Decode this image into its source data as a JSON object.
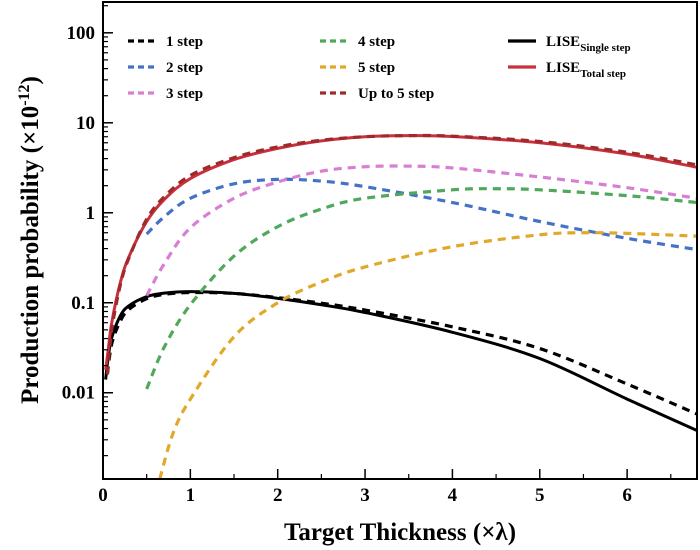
{
  "chart_data": {
    "type": "line",
    "xlabel": "Target Thickness (×λ)",
    "ylabel": "Production probability (×10",
    "ylabel_exponent": "-12",
    "ylabel_close": ")",
    "xlim": [
      0,
      6.8
    ],
    "ylim": [
      0.0011,
      220
    ],
    "yscale": "log",
    "grid": false,
    "legend_position": "top",
    "xticks": [
      {
        "value": 0,
        "label": "0"
      },
      {
        "value": 1,
        "label": "1"
      },
      {
        "value": 2,
        "label": "2"
      },
      {
        "value": 3,
        "label": "3"
      },
      {
        "value": 4,
        "label": "4"
      },
      {
        "value": 5,
        "label": "5"
      },
      {
        "value": 6,
        "label": "6"
      }
    ],
    "yticks": [
      {
        "value": 0.01,
        "label": "0.01"
      },
      {
        "value": 0.1,
        "label": "0.1"
      },
      {
        "value": 1,
        "label": "1"
      },
      {
        "value": 10,
        "label": "10"
      },
      {
        "value": 100,
        "label": "100"
      }
    ],
    "series": [
      {
        "name": "1 step",
        "color": "#000000",
        "dash": true,
        "x": [
          0.05,
          0.1,
          0.2,
          0.3,
          0.5,
          0.7,
          1.0,
          1.5,
          2.0,
          2.5,
          3.0,
          4.0,
          5.0,
          6.0,
          6.8
        ],
        "y": [
          0.016,
          0.035,
          0.063,
          0.085,
          0.111,
          0.124,
          0.13,
          0.127,
          0.114,
          0.099,
          0.083,
          0.054,
          0.031,
          0.0125,
          0.0058
        ]
      },
      {
        "name": "2 step",
        "color": "#4472c4",
        "dash": true,
        "x": [
          0.5,
          0.7,
          1.0,
          1.5,
          2.0,
          2.5,
          3.0,
          4.0,
          5.0,
          6.0,
          6.8
        ],
        "y": [
          0.58,
          0.9,
          1.45,
          2.1,
          2.35,
          2.25,
          1.95,
          1.3,
          0.8,
          0.52,
          0.39
        ]
      },
      {
        "name": "3 step",
        "color": "#d77fd3",
        "dash": true,
        "x": [
          0.5,
          0.7,
          1.0,
          1.5,
          2.0,
          2.5,
          3.0,
          3.5,
          4.0,
          5.0,
          6.0,
          6.8
        ],
        "y": [
          0.12,
          0.27,
          0.68,
          1.45,
          2.2,
          2.9,
          3.25,
          3.3,
          3.15,
          2.5,
          1.9,
          1.45
        ]
      },
      {
        "name": "4 step",
        "color": "#4fa85b",
        "dash": true,
        "x": [
          0.5,
          0.7,
          1.0,
          1.5,
          2.0,
          2.5,
          3.0,
          4.0,
          4.5,
          5.0,
          6.0,
          6.8
        ],
        "y": [
          0.011,
          0.032,
          0.095,
          0.33,
          0.7,
          1.1,
          1.45,
          1.8,
          1.85,
          1.8,
          1.55,
          1.3
        ]
      },
      {
        "name": "5 step",
        "color": "#e0a92a",
        "dash": true,
        "x": [
          0.65,
          0.8,
          1.0,
          1.5,
          2.0,
          2.5,
          3.0,
          4.0,
          5.0,
          5.5,
          6.0,
          6.8
        ],
        "y": [
          0.0011,
          0.0035,
          0.0085,
          0.042,
          0.1,
          0.17,
          0.25,
          0.42,
          0.57,
          0.6,
          0.59,
          0.55
        ]
      },
      {
        "name": "Up to 5 step",
        "color": "#9e2a2a",
        "dash": true,
        "x": [
          0.05,
          0.1,
          0.2,
          0.3,
          0.5,
          0.7,
          1.0,
          1.5,
          2.0,
          2.5,
          3.0,
          3.5,
          4.0,
          5.0,
          6.0,
          6.8
        ],
        "y": [
          0.016,
          0.05,
          0.16,
          0.32,
          0.85,
          1.5,
          2.6,
          4.1,
          5.4,
          6.4,
          7.0,
          7.2,
          7.1,
          6.2,
          4.7,
          3.4
        ]
      },
      {
        "name": "LISE",
        "name_sub": "Single step",
        "color": "#000000",
        "dash": false,
        "x": [
          0.03,
          0.06,
          0.1,
          0.2,
          0.3,
          0.5,
          0.7,
          1.0,
          1.5,
          2.0,
          2.5,
          3.0,
          4.0,
          5.0,
          6.0,
          6.8
        ],
        "y": [
          0.014,
          0.025,
          0.041,
          0.072,
          0.093,
          0.117,
          0.128,
          0.133,
          0.127,
          0.112,
          0.095,
          0.078,
          0.047,
          0.024,
          0.0085,
          0.0038
        ]
      },
      {
        "name": "LISE",
        "name_sub": "Total step",
        "color": "#c8303e",
        "dash": false,
        "x": [
          0.03,
          0.06,
          0.1,
          0.2,
          0.3,
          0.5,
          0.7,
          1.0,
          1.5,
          2.0,
          2.5,
          3.0,
          3.5,
          4.0,
          5.0,
          6.0,
          6.8
        ],
        "y": [
          0.018,
          0.03,
          0.06,
          0.17,
          0.33,
          0.8,
          1.4,
          2.4,
          3.9,
          5.2,
          6.3,
          7.0,
          7.2,
          7.05,
          6.0,
          4.5,
          3.2
        ]
      }
    ]
  }
}
